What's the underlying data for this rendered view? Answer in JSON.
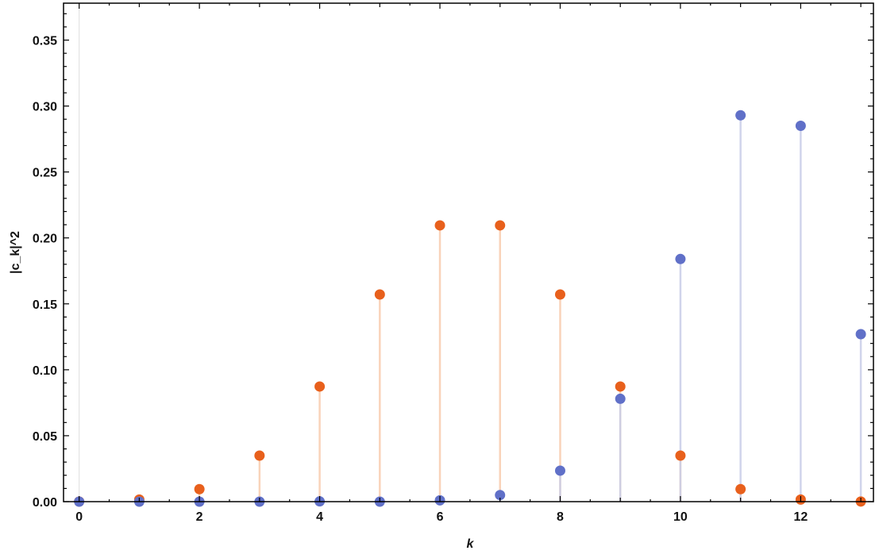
{
  "chart_data": {
    "type": "stem",
    "title": "",
    "xlabel": "k",
    "ylabel": "|c_k|^2",
    "xlim": [
      -0.26,
      13.21
    ],
    "ylim": [
      0,
      0.378
    ],
    "xticks": [
      0,
      2,
      4,
      6,
      8,
      10,
      12
    ],
    "xtick_labels": [
      "0",
      "2",
      "4",
      "6",
      "8",
      "10",
      "12"
    ],
    "yticks": [
      0,
      0.05,
      0.1,
      0.15,
      0.2,
      0.25,
      0.3,
      0.35
    ],
    "ytick_labels": [
      "0.00",
      "0.05",
      "0.10",
      "0.15",
      "0.20",
      "0.25",
      "0.30",
      "0.35"
    ],
    "grid": false,
    "frame": true,
    "x": [
      0,
      1,
      2,
      3,
      4,
      5,
      6,
      7,
      8,
      9,
      10,
      11,
      12,
      13
    ],
    "series": [
      {
        "color": "#E8601C",
        "stem_color": "#F8CBAE",
        "values": [
          0.0001,
          0.0016,
          0.0095,
          0.0349,
          0.0873,
          0.1571,
          0.2095,
          0.2095,
          0.1571,
          0.0873,
          0.0349,
          0.0095,
          0.0016,
          0.0001
        ]
      },
      {
        "color": "#6070C8",
        "stem_color": "#C8CDE8",
        "values": [
          0.0,
          0.0,
          0.0,
          0.0,
          0.0002,
          0.0,
          0.001,
          0.005,
          0.0235,
          0.078,
          0.184,
          0.293,
          0.285,
          0.127
        ]
      }
    ]
  }
}
